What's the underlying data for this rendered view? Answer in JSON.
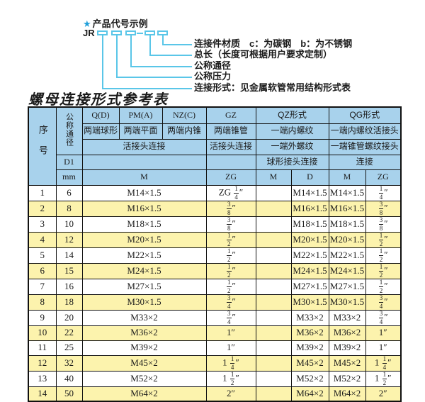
{
  "diagram": {
    "star": "★",
    "title": "产品代号示例",
    "prefix": "JR",
    "labels": [
      "连接件材质　c：为碳钢　b：为不锈钢",
      "总长（长度可根据用户要求定制）",
      "公称通径",
      "公称压力",
      "连接形式：见金属软管常用结构形式表"
    ]
  },
  "table": {
    "title": "螺母连接形式参考表",
    "header": {
      "seq": "序号",
      "dn": "公称通径",
      "d1": "D1",
      "mm": "mm",
      "q": "Q(D)",
      "pm": "PM(A)",
      "nz": "NZ(C)",
      "gz": "GZ",
      "qz": "QZ形式",
      "qg": "QG形式",
      "q_desc": "两端球形",
      "pm_desc": "两端平面",
      "nz_desc": "两端内锥",
      "gz_desc": "两端锥管",
      "qz_desc1": "一端内螺纹",
      "qg_desc1": "一端内螺纹活接头",
      "union_conn": "活接头连接",
      "gz_conn": "活接头连接",
      "qz_desc2": "一端外螺纹",
      "qg_desc2": "一端锥管螺纹接头",
      "qz_conn": "球形接头连接",
      "qg_conn": "连接",
      "m1": "M",
      "zg1": "ZG",
      "m2": "M",
      "d": "D",
      "m3": "M",
      "zg2": "ZG"
    },
    "rows": [
      [
        "1",
        "6",
        "M14×1.5",
        "ZG 1/4″",
        "",
        "M14×1.5",
        "M14×1.5",
        "1/4″"
      ],
      [
        "2",
        "8",
        "M16×1.5",
        "3/8″",
        "",
        "M16×1.5",
        "M16×1.5",
        "3/8″"
      ],
      [
        "3",
        "10",
        "M18×1.5",
        "3/8″",
        "",
        "M18×1.5",
        "M18×1.5",
        "3/8″"
      ],
      [
        "4",
        "12",
        "M20×1.5",
        "1/2″",
        "",
        "M20×1.5",
        "M20×1.5",
        "1/2″"
      ],
      [
        "5",
        "14",
        "M22×1.5",
        "1/2″",
        "",
        "M22×1.5",
        "M22×1.5",
        "1/2″"
      ],
      [
        "6",
        "15",
        "M24×1.5",
        "1/2″",
        "",
        "M24×1.5",
        "M24×1.5",
        "1/2″"
      ],
      [
        "7",
        "16",
        "M27×1.5",
        "1/2″",
        "",
        "M27×1.5",
        "M27×1.5",
        "1/2″"
      ],
      [
        "8",
        "18",
        "M30×1.5",
        "3/4″",
        "",
        "M30×1.5",
        "M30×1.5",
        "3/4″"
      ],
      [
        "9",
        "20",
        "M33×2",
        "3/4″",
        "",
        "M33×2",
        "M33×2",
        "3/4″"
      ],
      [
        "10",
        "22",
        "M36×2",
        "1″",
        "",
        "M36×2",
        "M36×2",
        "1″"
      ],
      [
        "11",
        "25",
        "M39×2",
        "1″",
        "",
        "M39×2",
        "M39×2",
        "1″"
      ],
      [
        "12",
        "32",
        "M45×2",
        "1 1/4″",
        "",
        "M45×2",
        "M45×2",
        "1 1/4″"
      ],
      [
        "13",
        "40",
        "M52×2",
        "1 1/2″",
        "",
        "M52×2",
        "M52×2",
        "1 1/2″"
      ],
      [
        "14",
        "50",
        "M64×2",
        "2″",
        "",
        "M64×2",
        "M64×2",
        "2″"
      ]
    ]
  },
  "colors": {
    "header_blue": "#a8d2ec",
    "row_yellow": "#fcf3ad",
    "diagram_cyan": "#5ac6e8",
    "star_blue": "#1f9fd9",
    "border_black": "#111111"
  }
}
